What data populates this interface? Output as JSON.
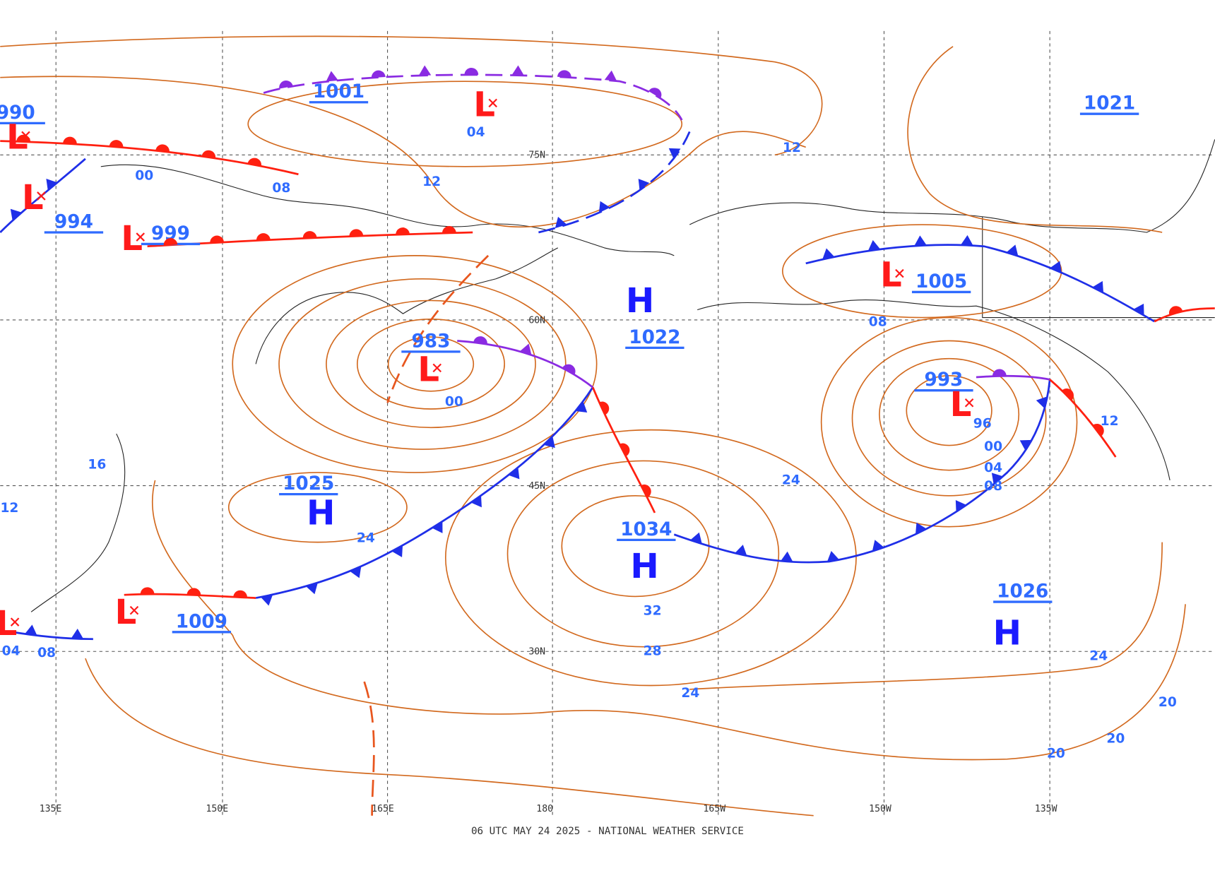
{
  "caption": "06 UTC MAY 24 2025 - NATIONAL WEATHER SERVICE",
  "latitude_labels": [
    "75N",
    "60N",
    "45N",
    "30N"
  ],
  "longitude_labels": [
    "135E",
    "150E",
    "165E",
    "180",
    "165W",
    "150W",
    "135W"
  ],
  "pressure_centers": [
    {
      "pressure": "990",
      "symbol": "L"
    },
    {
      "pressure": "1001",
      "symbol": "L"
    },
    {
      "pressure": "994",
      "symbol": "L"
    },
    {
      "pressure": "999",
      "symbol": "L"
    },
    {
      "pressure": "1021"
    },
    {
      "pressure": "983",
      "symbol": "L"
    },
    {
      "pressure": "1022",
      "symbol": "H"
    },
    {
      "pressure": "1025",
      "symbol": "H"
    },
    {
      "pressure": "1034",
      "symbol": "H"
    },
    {
      "pressure": "1005",
      "symbol": "L"
    },
    {
      "pressure": "993",
      "symbol": "L"
    },
    {
      "pressure": "1009",
      "symbol": "L"
    },
    {
      "pressure": "1026",
      "symbol": "H"
    },
    {
      "symbol": "L"
    }
  ],
  "isobar_labels": [
    "04",
    "00",
    "08",
    "12",
    "12",
    "00",
    "96",
    "00",
    "04",
    "08",
    "12",
    "24",
    "24",
    "32",
    "28",
    "24",
    "24",
    "20",
    "20",
    "20",
    "16",
    "12",
    "04",
    "08",
    "08"
  ]
}
